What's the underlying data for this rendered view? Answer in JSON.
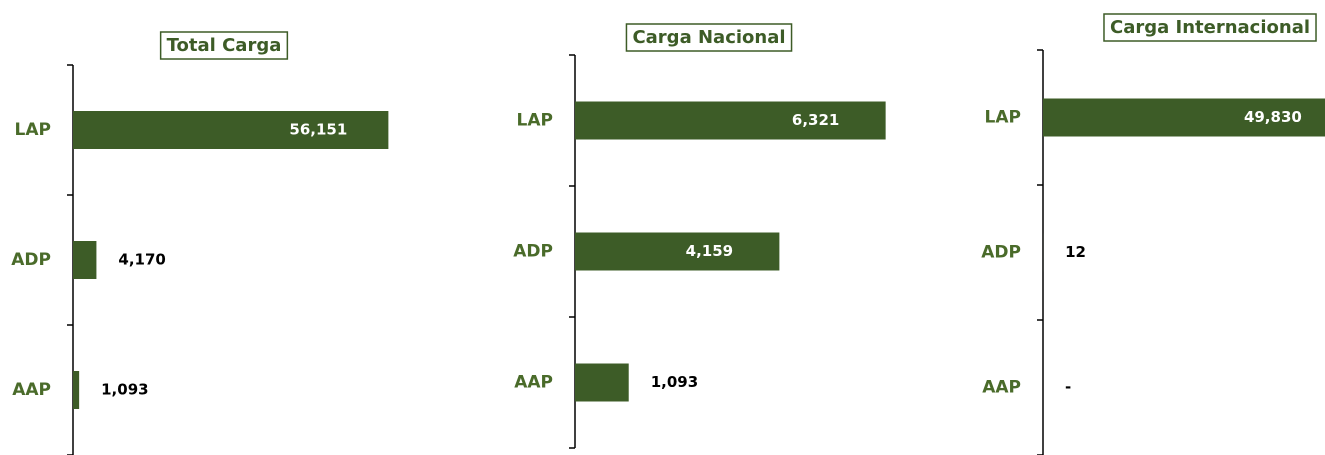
{
  "chart_data": [
    {
      "type": "barh",
      "title": "Total Carga",
      "categories": [
        "LAP",
        "ADP",
        "AAP"
      ],
      "values": [
        56151,
        4170,
        1093
      ],
      "value_labels": [
        "56,151",
        "4,170",
        "1,093"
      ],
      "color": "#3d5c27",
      "xlim": [
        0,
        60000
      ]
    },
    {
      "type": "barh",
      "title": "Carga Nacional",
      "categories": [
        "LAP",
        "ADP",
        "AAP"
      ],
      "values": [
        6321,
        4159,
        1093
      ],
      "value_labels": [
        "6,321",
        "4,159",
        "1,093"
      ],
      "color": "#3d5c27",
      "xlim": [
        0,
        7000
      ]
    },
    {
      "type": "barh",
      "title": "Carga Internacional",
      "categories": [
        "LAP",
        "ADP",
        "AAP"
      ],
      "values": [
        49830,
        12,
        0
      ],
      "value_labels": [
        "49,830",
        "12",
        "-"
      ],
      "color": "#3d5c27",
      "xlim": [
        0,
        55000
      ]
    }
  ]
}
